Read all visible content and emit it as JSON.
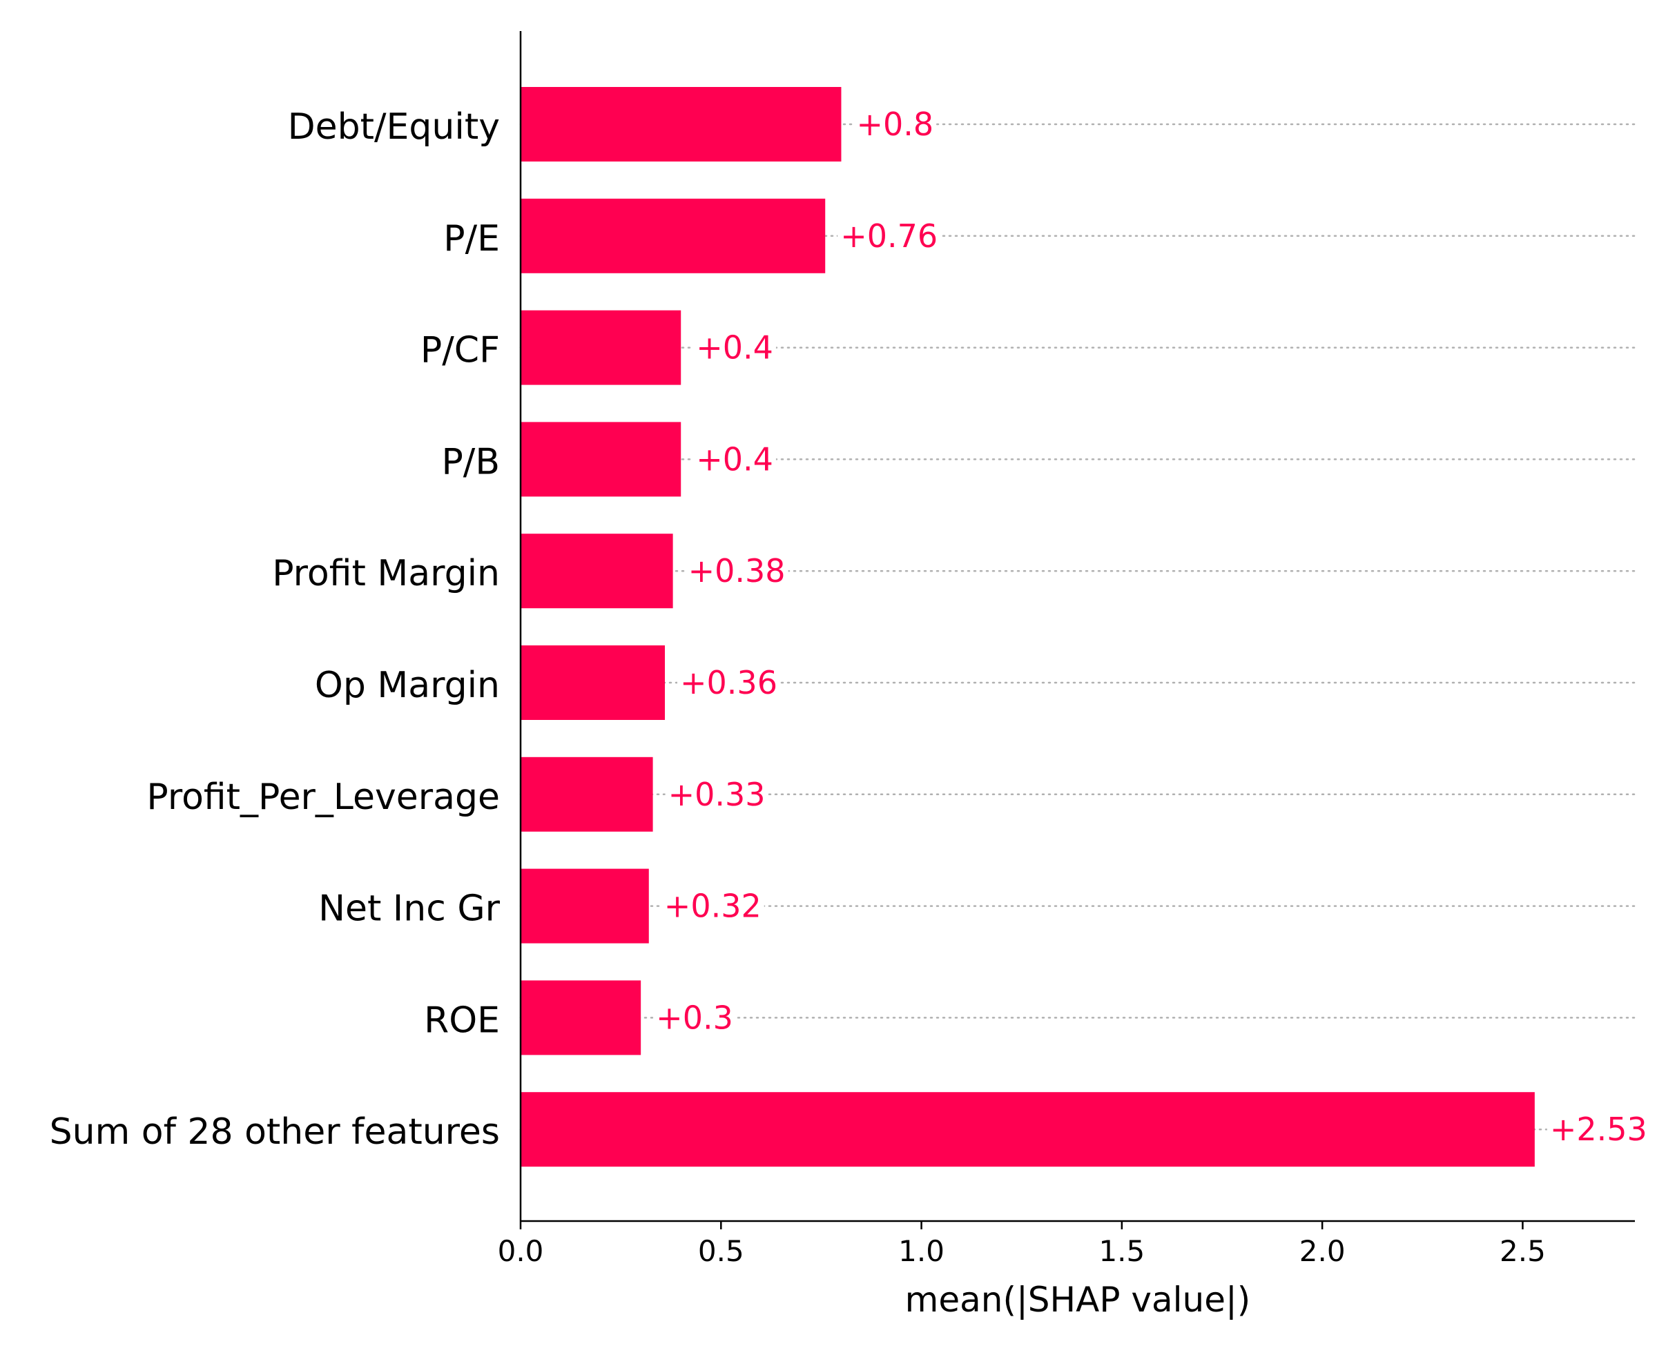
{
  "chart_data": {
    "type": "bar",
    "orientation": "horizontal",
    "title": "",
    "xlabel": "mean(|SHAP value|)",
    "ylabel": "",
    "xlim": [
      0,
      2.78
    ],
    "xticks": [
      0.0,
      0.5,
      1.0,
      1.5,
      2.0,
      2.5
    ],
    "xtick_labels": [
      "0.0",
      "0.5",
      "1.0",
      "1.5",
      "2.0",
      "2.5"
    ],
    "grid": "dotted horizontal guide line per bar",
    "legend": "none",
    "categories": [
      "Debt/Equity",
      "P/E",
      "P/CF",
      "P/B",
      "Profit Margin",
      "Op Margin",
      "Profit_Per_Leverage",
      "Net Inc Gr",
      "ROE",
      "Sum of 28 other features"
    ],
    "values": [
      0.8,
      0.76,
      0.4,
      0.4,
      0.38,
      0.36,
      0.33,
      0.32,
      0.3,
      2.53
    ],
    "value_labels": [
      "+0.8",
      "+0.76",
      "+0.4",
      "+0.4",
      "+0.38",
      "+0.36",
      "+0.33",
      "+0.32",
      "+0.3",
      "+2.53"
    ],
    "colors": {
      "bar": "#ff0051",
      "value_text": "#ff0051",
      "axis": "#000000",
      "grid": "#b0b0b0"
    }
  }
}
